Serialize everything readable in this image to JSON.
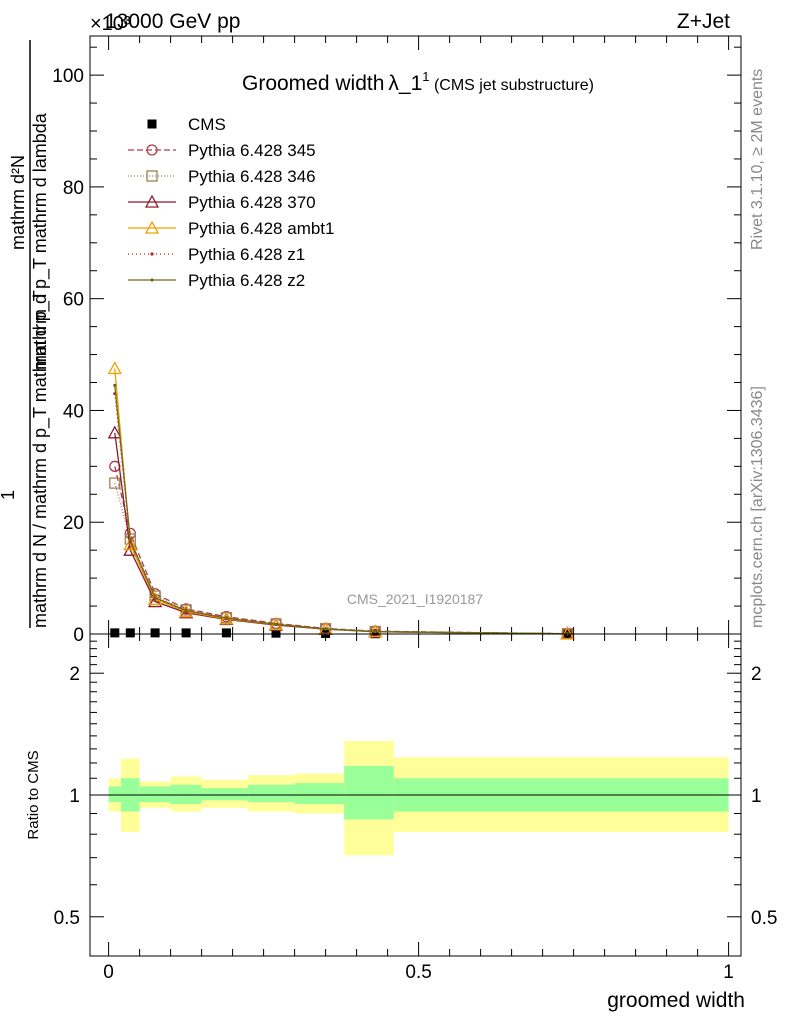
{
  "header": {
    "energy_label": "13000 GeV pp",
    "process_label": "Z+Jet",
    "exponent_label": "×10³"
  },
  "side_labels": {
    "rivet": "Rivet 3.1.10, ≥ 2M events",
    "mcplots": "mcplots.cern.ch [arXiv:1306.3436]"
  },
  "chart_data": [
    {
      "type": "line",
      "title_main": "Groomed width",
      "title_symbol": "λ_1",
      "title_sup": "1",
      "title_sub": " (CMS jet substructure)",
      "ylabel_top": "mathrm d²N",
      "ylabel_mid": "mathrm d p_T mathrm d lambda",
      "ylabel_frac": "1",
      "ylabel_bottom": "mathrm d N / mathrm d p_T mathrm d p_T",
      "watermark": "CMS_2021_I1920187",
      "xlim": [
        -0.03,
        1.02
      ],
      "ylim": [
        0,
        107
      ],
      "y_ticks": [
        "0",
        "20",
        "40",
        "60",
        "80",
        "100"
      ],
      "y_tick_values": [
        0,
        20,
        40,
        60,
        80,
        100
      ],
      "legend_position": "top-left",
      "series": [
        {
          "name": "CMS",
          "color": "#000000",
          "marker": "square",
          "dash": "none",
          "x": [
            0.01,
            0.035,
            0.075,
            0.125,
            0.19,
            0.27,
            0.35,
            0.43,
            0.74
          ],
          "y": [
            0.2,
            0.2,
            0.2,
            0.2,
            0.2,
            0.15,
            0.1,
            0.05,
            0.02
          ]
        },
        {
          "name": "Pythia 6.428 345",
          "color": "#b03a4a",
          "marker": "circle",
          "dash": "6,3",
          "x": [
            0.01,
            0.035,
            0.075,
            0.125,
            0.19,
            0.27,
            0.35,
            0.43,
            0.74
          ],
          "y": [
            30,
            18,
            7.2,
            4.5,
            3.1,
            1.9,
            1.0,
            0.5,
            0.05
          ]
        },
        {
          "name": "Pythia 6.428 346",
          "color": "#a08050",
          "marker": "square-open",
          "dash": "1,2",
          "x": [
            0.01,
            0.035,
            0.075,
            0.125,
            0.19,
            0.27,
            0.35,
            0.43,
            0.74
          ],
          "y": [
            27,
            17,
            6.8,
            4.3,
            2.9,
            1.8,
            0.95,
            0.45,
            0.05
          ]
        },
        {
          "name": "Pythia 6.428 370",
          "color": "#8b1a2e",
          "marker": "triangle",
          "dash": "none",
          "x": [
            0.01,
            0.035,
            0.075,
            0.125,
            0.19,
            0.27,
            0.35,
            0.43,
            0.74
          ],
          "y": [
            36,
            15,
            5.8,
            3.8,
            2.6,
            1.6,
            0.85,
            0.4,
            0.04
          ]
        },
        {
          "name": "Pythia 6.428 ambt1",
          "color": "#f0a000",
          "marker": "triangle",
          "dash": "none",
          "x": [
            0.01,
            0.035,
            0.075,
            0.125,
            0.19,
            0.27,
            0.35,
            0.43,
            0.74
          ],
          "y": [
            47.5,
            16,
            6.2,
            4.0,
            2.7,
            1.7,
            0.9,
            0.42,
            0.04
          ]
        },
        {
          "name": "Pythia 6.428 z1",
          "color": "#c02020",
          "marker": "dot",
          "dash": "1,3",
          "x": [
            0.01,
            0.035,
            0.075,
            0.125,
            0.19,
            0.27,
            0.35,
            0.43,
            0.74
          ],
          "y": [
            43,
            16.5,
            6.4,
            4.1,
            2.8,
            1.7,
            0.9,
            0.42,
            0.04
          ]
        },
        {
          "name": "Pythia 6.428 z2",
          "color": "#6b6b1a",
          "marker": "dot",
          "dash": "none",
          "x": [
            0.01,
            0.035,
            0.075,
            0.125,
            0.19,
            0.27,
            0.35,
            0.43,
            0.74
          ],
          "y": [
            44.5,
            16.8,
            6.5,
            4.2,
            2.85,
            1.75,
            0.92,
            0.43,
            0.04
          ]
        }
      ]
    },
    {
      "type": "area",
      "ylabel": "Ratio to CMS",
      "xlabel": "groomed width",
      "xlim": [
        -0.03,
        1.02
      ],
      "ylim": [
        0.4,
        2.5
      ],
      "log_y": true,
      "y_ticks": [
        "0.5",
        "1",
        "2"
      ],
      "y_tick_values": [
        0.5,
        1,
        2
      ],
      "x_ticks": [
        "0",
        "0.5",
        "1"
      ],
      "x_tick_values": [
        0,
        0.5,
        1
      ],
      "bands": {
        "bin_edges": [
          0,
          0.02,
          0.05,
          0.1,
          0.15,
          0.225,
          0.3,
          0.38,
          0.46,
          1.0
        ],
        "inner_low": [
          0.96,
          0.91,
          0.96,
          0.95,
          0.97,
          0.96,
          0.95,
          0.87,
          0.91
        ],
        "inner_high": [
          1.05,
          1.1,
          1.05,
          1.06,
          1.04,
          1.06,
          1.07,
          1.18,
          1.1
        ],
        "outer_low": [
          0.91,
          0.81,
          0.93,
          0.91,
          0.93,
          0.91,
          0.9,
          0.71,
          0.81
        ],
        "outer_high": [
          1.1,
          1.23,
          1.08,
          1.11,
          1.09,
          1.12,
          1.13,
          1.36,
          1.24
        ],
        "inner_color": "#99ff99",
        "outer_color": "#ffff99"
      }
    }
  ]
}
